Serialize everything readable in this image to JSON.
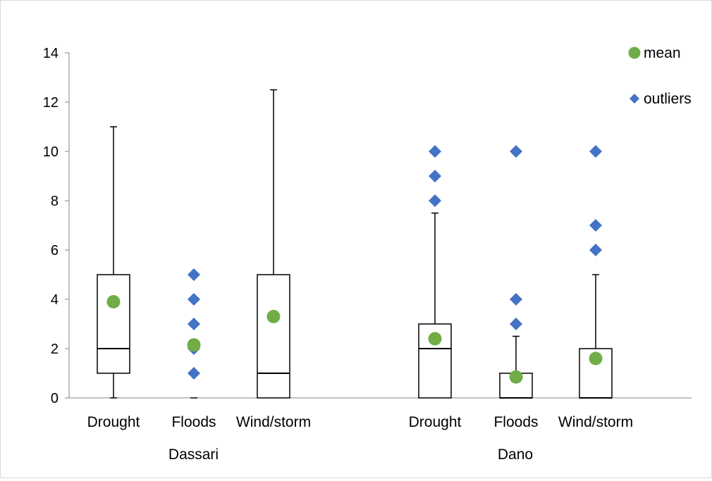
{
  "chart_data": {
    "type": "boxplot",
    "title": "",
    "xlabel": "",
    "ylabel": "",
    "ylim": [
      0,
      14
    ],
    "yticks": [
      0,
      2,
      4,
      6,
      8,
      10,
      12,
      14
    ],
    "ytick_labels": [
      "0",
      "2",
      "4",
      "6",
      "8",
      "10",
      "12",
      "14"
    ],
    "grid": false,
    "legend_position": "top-right",
    "legend": [
      {
        "label": "mean",
        "marker": "circle",
        "color": "#70AD47"
      },
      {
        "label": "outliers",
        "marker": "diamond",
        "color": "#4472C4"
      }
    ],
    "groups": [
      {
        "name": "Dassari",
        "categories": [
          {
            "label": "Drought",
            "min": 0,
            "q1": 1,
            "median": 2,
            "q3": 5,
            "max": 11,
            "mean": 3.9,
            "outliers": []
          },
          {
            "label": "Floods",
            "min": 0,
            "q1": 0,
            "median": 0,
            "q3": 0,
            "max": 0,
            "mean": 2.15,
            "outliers": [
              1,
              2,
              3,
              4,
              5
            ]
          },
          {
            "label": "Wind/storm",
            "min": 0,
            "q1": 0,
            "median": 1,
            "q3": 5,
            "max": 12.5,
            "mean": 3.3,
            "outliers": []
          }
        ]
      },
      {
        "name": "Dano",
        "categories": [
          {
            "label": "Drought",
            "min": 0,
            "q1": 0,
            "median": 2,
            "q3": 3,
            "max": 7.5,
            "mean": 2.4,
            "outliers": [
              8,
              9,
              10
            ]
          },
          {
            "label": "Floods",
            "min": 0,
            "q1": 0,
            "median": 0,
            "q3": 1,
            "max": 2.5,
            "mean": 0.85,
            "outliers": [
              3,
              4,
              10
            ]
          },
          {
            "label": "Wind/storm",
            "min": 0,
            "q1": 0,
            "median": 0,
            "q3": 2,
            "max": 5,
            "mean": 1.6,
            "outliers": [
              6,
              7,
              10
            ]
          }
        ]
      }
    ]
  }
}
